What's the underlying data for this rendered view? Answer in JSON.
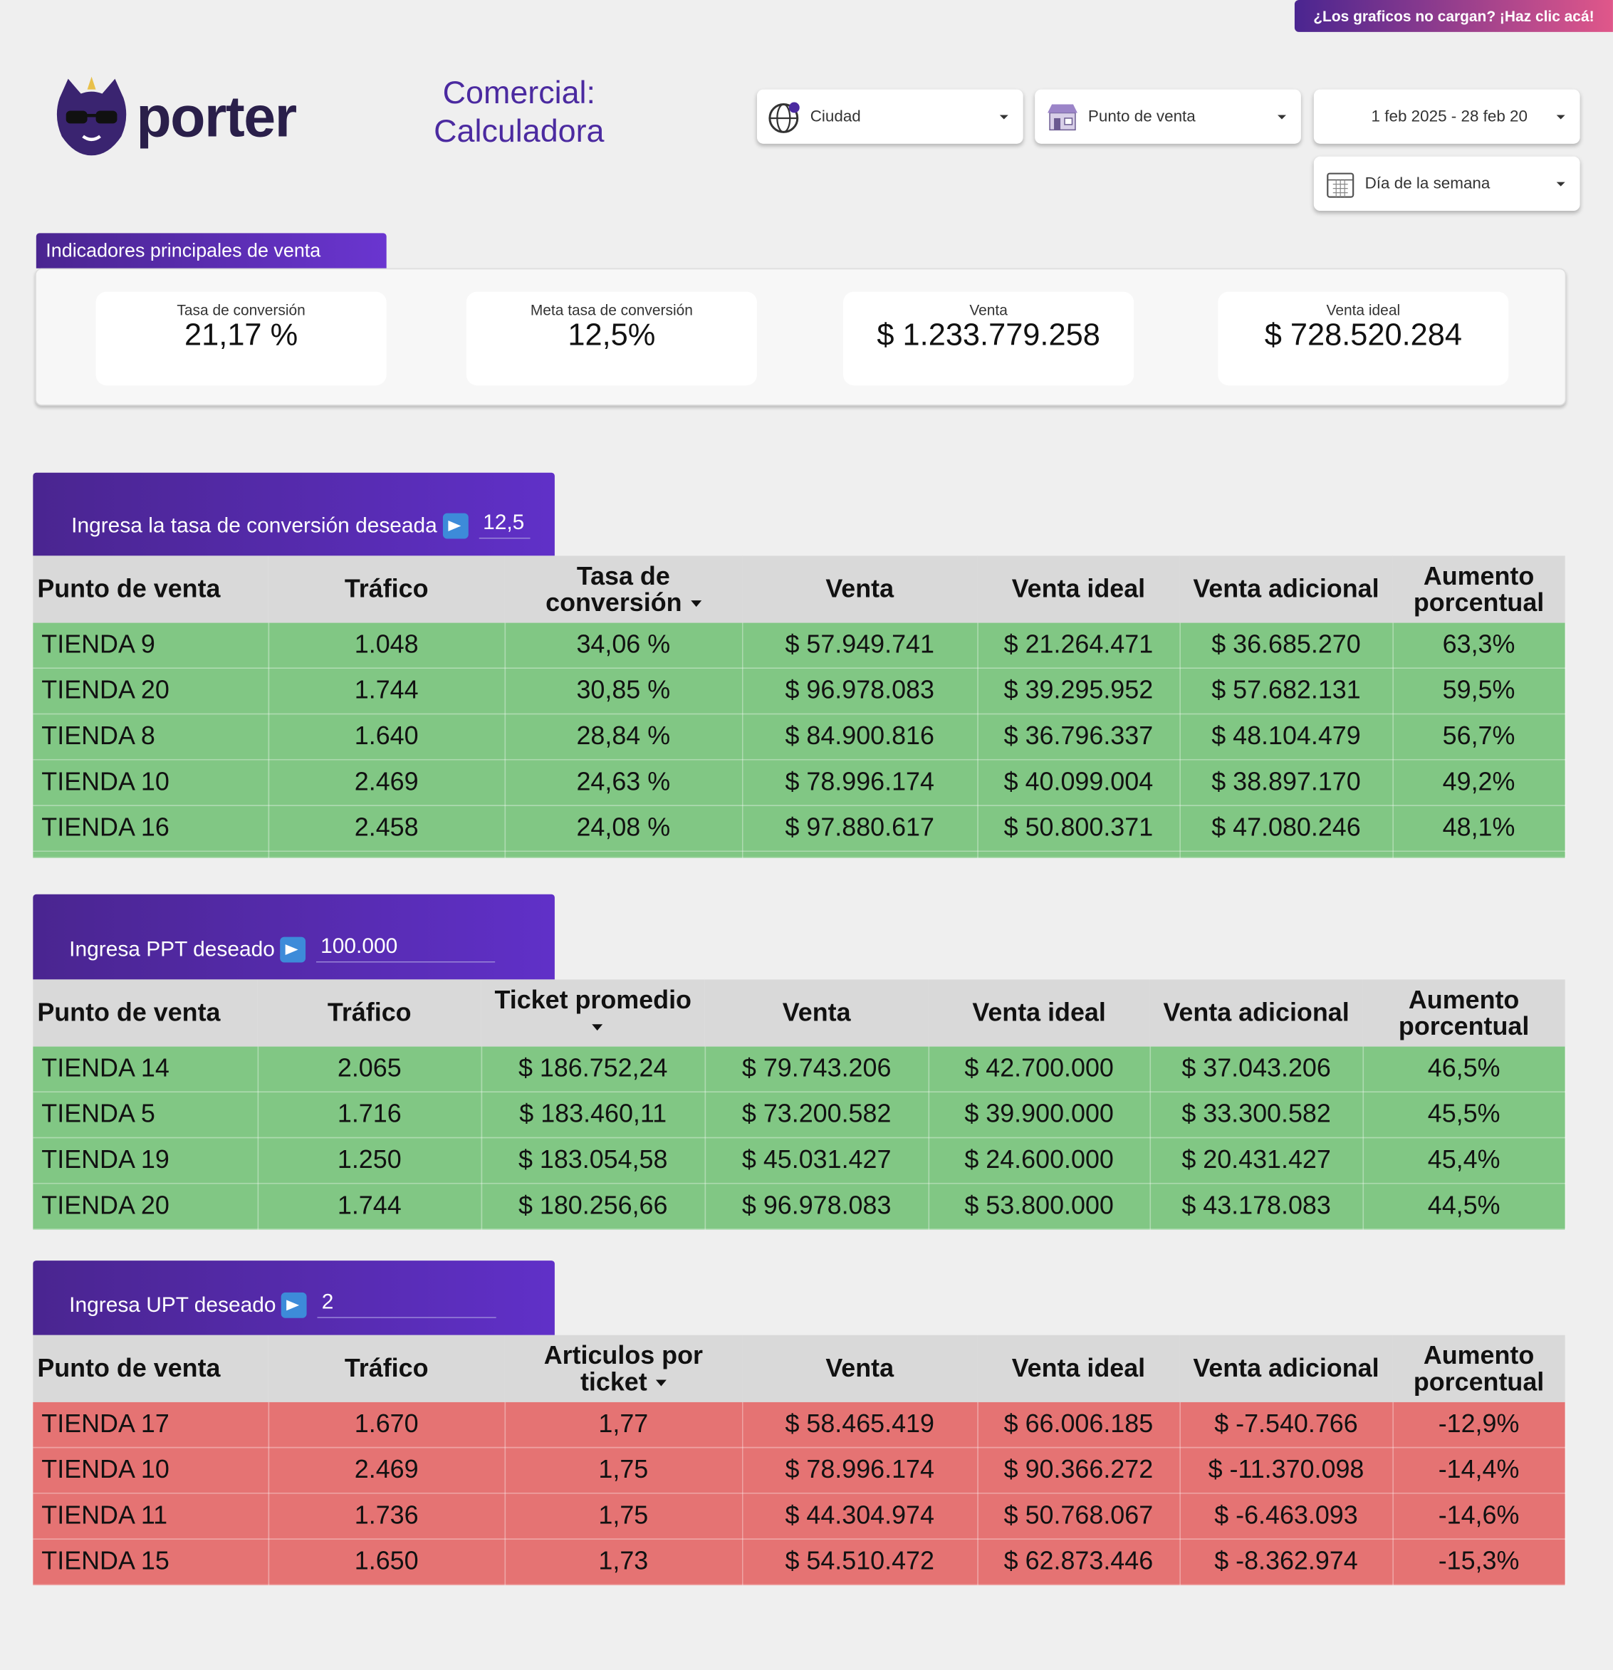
{
  "header": {
    "banner": "¿Los graficos no cargan? ¡Haz clic acá!",
    "logo": "porter",
    "title": [
      "Comercial:",
      "Calculadora"
    ],
    "filters": [
      "Ciudad",
      "Punto de venta",
      "1 feb 2025 - 28 feb 20",
      "Día de la semana"
    ]
  },
  "kpis": {
    "title": "Indicadores principales de venta",
    "items": [
      {
        "label": "Tasa de conversión",
        "value": "21,17 %"
      },
      {
        "label": "Meta tasa de conversión",
        "value": "12,5%"
      },
      {
        "label": "Venta",
        "value": "$ 1.233.779.258"
      },
      {
        "label": "Venta ideal",
        "value": "$ 728.520.284"
      }
    ]
  },
  "tables": [
    {
      "prompt": "Ingresa la tasa de conversión deseada",
      "input": "12,5",
      "row_color": "#81c784",
      "headers": [
        "Punto de venta",
        "Tráfico",
        "Tasa de conversión",
        "Venta",
        "Venta ideal",
        "Venta adicional",
        "Aumento porcentual"
      ],
      "rows": [
        [
          "TIENDA 9",
          "1.048",
          "34,06 %",
          "$ 57.949.741",
          "$ 21.264.471",
          "$ 36.685.270",
          "63,3%"
        ],
        [
          "TIENDA 20",
          "1.744",
          "30,85 %",
          "$ 96.978.083",
          "$ 39.295.952",
          "$ 57.682.131",
          "59,5%"
        ],
        [
          "TIENDA 8",
          "1.640",
          "28,84 %",
          "$ 84.900.816",
          "$ 36.796.337",
          "$ 48.104.479",
          "56,7%"
        ],
        [
          "TIENDA 10",
          "2.469",
          "24,63 %",
          "$ 78.996.174",
          "$ 40.099.004",
          "$ 38.897.170",
          "49,2%"
        ],
        [
          "TIENDA 16",
          "2.458",
          "24,08 %",
          "$ 97.880.617",
          "$ 50.800.371",
          "$ 47.080.246",
          "48,1%"
        ]
      ]
    },
    {
      "prompt": "Ingresa PPT deseado",
      "input": "100.000",
      "row_color": "#81c784",
      "headers": [
        "Punto de venta",
        "Tráfico",
        "Ticket promedio",
        "Venta",
        "Venta ideal",
        "Venta adicional",
        "Aumento porcentual"
      ],
      "rows": [
        [
          "TIENDA 14",
          "2.065",
          "$ 186.752,24",
          "$ 79.743.206",
          "$ 42.700.000",
          "$ 37.043.206",
          "46,5%"
        ],
        [
          "TIENDA 5",
          "1.716",
          "$ 183.460,11",
          "$ 73.200.582",
          "$ 39.900.000",
          "$ 33.300.582",
          "45,5%"
        ],
        [
          "TIENDA 19",
          "1.250",
          "$ 183.054,58",
          "$ 45.031.427",
          "$ 24.600.000",
          "$ 20.431.427",
          "45,4%"
        ],
        [
          "TIENDA 20",
          "1.744",
          "$ 180.256,66",
          "$ 96.978.083",
          "$ 53.800.000",
          "$ 43.178.083",
          "44,5%"
        ]
      ]
    },
    {
      "prompt": "Ingresa UPT deseado",
      "input": "2",
      "row_color": "#e57373",
      "headers": [
        "Punto de venta",
        "Tráfico",
        "Articulos por ticket",
        "Venta",
        "Venta ideal",
        "Venta adicional",
        "Aumento porcentual"
      ],
      "rows": [
        [
          "TIENDA 17",
          "1.670",
          "1,77",
          "$ 58.465.419",
          "$ 66.006.185",
          "$ -7.540.766",
          "-12,9%"
        ],
        [
          "TIENDA 10",
          "2.469",
          "1,75",
          "$ 78.996.174",
          "$ 90.366.272",
          "$ -11.370.098",
          "-14,4%"
        ],
        [
          "TIENDA 11",
          "1.736",
          "1,75",
          "$ 44.304.974",
          "$ 50.768.067",
          "$ -6.463.093",
          "-14,6%"
        ],
        [
          "TIENDA 15",
          "1.650",
          "1,73",
          "$ 54.510.472",
          "$ 62.873.446",
          "$ -8.362.974",
          "-15,3%"
        ]
      ]
    }
  ]
}
